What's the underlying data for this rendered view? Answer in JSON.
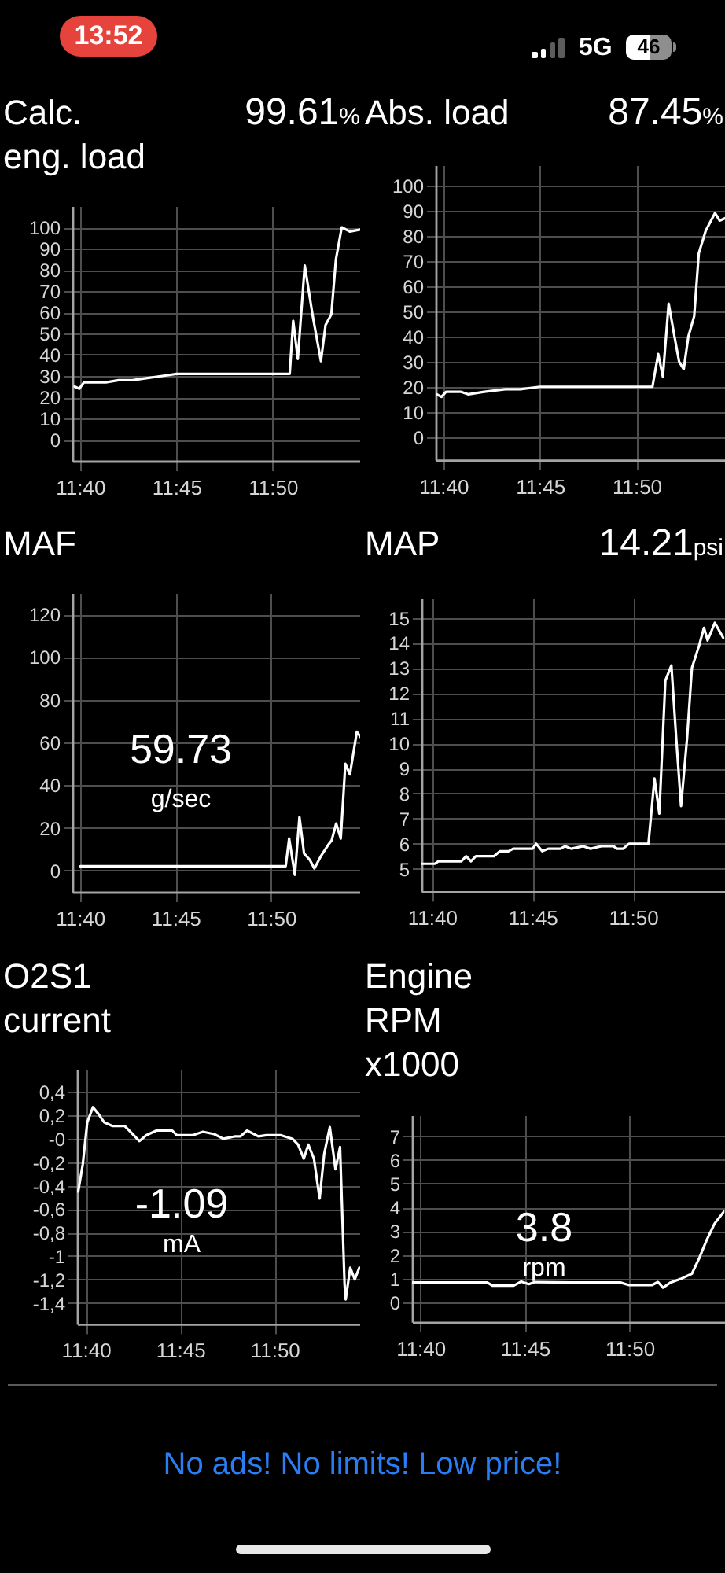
{
  "chart_data": [
    {
      "type": "other",
      "annotations": [
        "13:52",
        "5G",
        "46"
      ]
    },
    {
      "type": "line",
      "title": "Calc. eng. load",
      "subtitle": "99.61%",
      "grid": true,
      "xlim": [
        11.66,
        11.91
      ],
      "ylim": [
        -10,
        110
      ],
      "xticks": [
        {
          "value": 11.6667,
          "label": "11:40"
        },
        {
          "value": 11.75,
          "label": "11:45"
        },
        {
          "value": 11.8333,
          "label": "11:50"
        }
      ],
      "yticks": [
        0,
        10,
        20,
        30,
        40,
        50,
        60,
        70,
        80,
        90,
        100
      ],
      "x": [
        11.662,
        11.666,
        11.67,
        11.678,
        11.689,
        11.7,
        11.712,
        11.725,
        11.738,
        11.75,
        11.77,
        11.788,
        11.802,
        11.815,
        11.833,
        11.848,
        11.851,
        11.855,
        11.861,
        11.868,
        11.875,
        11.879,
        11.884,
        11.888,
        11.893,
        11.9,
        11.91
      ],
      "series": [
        {
          "color": "#ffffff",
          "values": [
            25,
            24,
            27,
            27,
            27,
            28,
            28,
            29,
            30,
            31,
            31,
            31,
            31,
            31,
            31,
            31,
            56,
            38,
            82,
            58,
            37,
            54,
            59,
            85,
            100,
            98,
            99
          ]
        }
      ]
    },
    {
      "type": "line",
      "title": "Abs. load",
      "subtitle": "87.45%",
      "grid": true,
      "xlim": [
        11.66,
        11.91
      ],
      "ylim": [
        -9,
        108
      ],
      "xticks": [
        {
          "value": 11.6667,
          "label": "11:40"
        },
        {
          "value": 11.75,
          "label": "11:45"
        },
        {
          "value": 11.8333,
          "label": "11:50"
        }
      ],
      "yticks": [
        0,
        10,
        20,
        30,
        40,
        50,
        60,
        70,
        80,
        90,
        100
      ],
      "x": [
        11.661,
        11.665,
        11.669,
        11.682,
        11.688,
        11.702,
        11.72,
        11.733,
        11.75,
        11.77,
        11.787,
        11.81,
        11.832,
        11.847,
        11.852,
        11.856,
        11.861,
        11.866,
        11.87,
        11.874,
        11.878,
        11.883,
        11.887,
        11.893,
        11.901,
        11.905,
        11.91
      ],
      "series": [
        {
          "color": "#ffffff",
          "values": [
            17,
            16,
            18,
            18,
            17,
            18,
            19,
            19,
            20,
            20,
            20,
            20,
            20,
            20,
            33,
            24,
            53,
            40,
            30,
            27,
            40,
            48,
            73,
            82,
            89,
            86,
            87
          ]
        }
      ]
    },
    {
      "type": "line",
      "title": "MAF",
      "subtitle": "59.73 g/sec",
      "grid": true,
      "xlim": [
        11.66,
        11.912
      ],
      "ylim": [
        -10,
        130
      ],
      "xticks": [
        {
          "value": 11.6667,
          "label": "11:40"
        },
        {
          "value": 11.75,
          "label": "11:45"
        },
        {
          "value": 11.8333,
          "label": "11:50"
        }
      ],
      "yticks": [
        0,
        20,
        40,
        60,
        80,
        100,
        120
      ],
      "x": [
        11.667,
        11.672,
        11.69,
        11.735,
        11.78,
        11.827,
        11.846,
        11.849,
        11.854,
        11.858,
        11.862,
        11.867,
        11.871,
        11.877,
        11.883,
        11.886,
        11.89,
        11.894,
        11.898,
        11.902,
        11.908,
        11.912
      ],
      "series": [
        {
          "color": "#ffffff",
          "values": [
            2,
            2,
            2,
            2,
            2,
            2,
            2,
            15,
            -2,
            25,
            8,
            5,
            1,
            7,
            12,
            14,
            22,
            15,
            50,
            45,
            65,
            62
          ]
        }
      ]
    },
    {
      "type": "line",
      "title": "MAP",
      "subtitle": "14.21psi",
      "grid": true,
      "xlim": [
        11.658,
        11.909
      ],
      "ylim": [
        4.1,
        15.8
      ],
      "xticks": [
        {
          "value": 11.6667,
          "label": "11:40"
        },
        {
          "value": 11.75,
          "label": "11:45"
        },
        {
          "value": 11.8333,
          "label": "11:50"
        }
      ],
      "yticks": [
        5,
        6,
        7,
        8,
        9,
        10,
        11,
        12,
        13,
        14,
        15
      ],
      "x": [
        11.658,
        11.669,
        11.672,
        11.691,
        11.695,
        11.699,
        11.703,
        11.718,
        11.723,
        11.73,
        11.734,
        11.75,
        11.753,
        11.758,
        11.763,
        11.773,
        11.777,
        11.782,
        11.792,
        11.798,
        11.807,
        11.817,
        11.82,
        11.825,
        11.83,
        11.846,
        11.851,
        11.855,
        11.86,
        11.865,
        11.869,
        11.873,
        11.878,
        11.882,
        11.888,
        11.892,
        11.895,
        11.901,
        11.908
      ],
      "series": [
        {
          "color": "#ffffff",
          "values": [
            5.2,
            5.2,
            5.3,
            5.3,
            5.5,
            5.3,
            5.5,
            5.5,
            5.7,
            5.7,
            5.8,
            5.8,
            6.0,
            5.7,
            5.8,
            5.8,
            5.9,
            5.8,
            5.9,
            5.8,
            5.9,
            5.9,
            5.8,
            5.8,
            6.0,
            6.0,
            8.6,
            7.2,
            12.5,
            13.1,
            10.2,
            7.5,
            10.2,
            13.0,
            13.9,
            14.6,
            14.1,
            14.8,
            14.2
          ]
        }
      ]
    },
    {
      "type": "line",
      "title": "O2S1 current",
      "subtitle": "-1.09 mA",
      "grid": true,
      "xlim": [
        11.659,
        11.909
      ],
      "ylim": [
        -1.58,
        0.59
      ],
      "xticks": [
        {
          "value": 11.6667,
          "label": "11:40"
        },
        {
          "value": 11.75,
          "label": "11:45"
        },
        {
          "value": 11.8333,
          "label": "11:50"
        }
      ],
      "yticks": [
        {
          "value": 0.4,
          "label": "0,4"
        },
        {
          "value": 0.2,
          "label": "0,2"
        },
        {
          "value": 0,
          "label": "-0"
        },
        {
          "value": -0.2,
          "label": "-0,2"
        },
        {
          "value": -0.4,
          "label": "-0,4"
        },
        {
          "value": -0.6,
          "label": "-0,6"
        },
        {
          "value": -0.8,
          "label": "-0,8"
        },
        -1,
        {
          "value": -1.2,
          "label": "-1,2"
        },
        {
          "value": -1.4,
          "label": "-1,4"
        }
      ],
      "x": [
        11.66,
        11.664,
        11.668,
        11.673,
        11.678,
        11.683,
        11.69,
        11.701,
        11.708,
        11.714,
        11.72,
        11.729,
        11.743,
        11.747,
        11.761,
        11.77,
        11.78,
        11.788,
        11.798,
        11.803,
        11.809,
        11.819,
        11.826,
        11.839,
        11.849,
        11.854,
        11.859,
        11.863,
        11.868,
        11.873,
        11.877,
        11.882,
        11.887,
        11.891,
        11.895,
        11.896,
        11.9,
        11.904,
        11.908
      ],
      "series": [
        {
          "color": "#ffffff",
          "values": [
            -0.45,
            -0.22,
            0.14,
            0.27,
            0.21,
            0.14,
            0.11,
            0.11,
            0.04,
            -0.02,
            0.03,
            0.07,
            0.07,
            0.03,
            0.03,
            0.06,
            0.04,
            0.0,
            0.02,
            0.02,
            0.07,
            0.02,
            0.03,
            0.03,
            0.0,
            -0.05,
            -0.17,
            -0.05,
            -0.17,
            -0.51,
            -0.13,
            0.1,
            -0.26,
            -0.07,
            -1.24,
            -1.37,
            -1.1,
            -1.2,
            -1.1
          ]
        }
      ]
    },
    {
      "type": "line",
      "title": "Engine RPM x1000",
      "subtitle": "3.8 rpm",
      "grid": true,
      "xlim": [
        11.66,
        11.909
      ],
      "ylim": [
        -0.82,
        7.88
      ],
      "xticks": [
        {
          "value": 11.6667,
          "label": "11:40"
        },
        {
          "value": 11.75,
          "label": "11:45"
        },
        {
          "value": 11.8333,
          "label": "11:50"
        }
      ],
      "yticks": [
        0,
        1,
        2,
        3,
        4,
        5,
        6,
        7
      ],
      "x": [
        11.66,
        11.683,
        11.72,
        11.724,
        11.741,
        11.747,
        11.753,
        11.758,
        11.787,
        11.826,
        11.833,
        11.851,
        11.856,
        11.86,
        11.866,
        11.874,
        11.883,
        11.889,
        11.895,
        11.901,
        11.909
      ],
      "series": [
        {
          "color": "#ffffff",
          "values": [
            0.84,
            0.84,
            0.84,
            0.71,
            0.71,
            0.88,
            0.77,
            0.86,
            0.84,
            0.84,
            0.73,
            0.73,
            0.86,
            0.62,
            0.84,
            0.99,
            1.21,
            1.88,
            2.65,
            3.31,
            3.86
          ]
        }
      ]
    },
    {
      "type": "other",
      "annotations": [
        "No ads! No limits! Low price!"
      ]
    }
  ]
}
